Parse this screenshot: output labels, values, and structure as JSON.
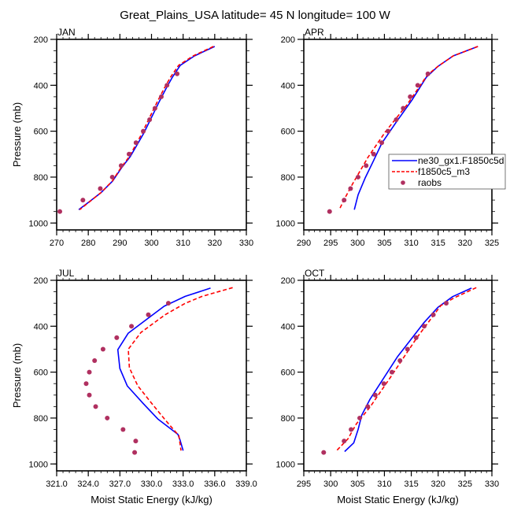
{
  "figure": {
    "title": "Great_Plains_USA  latitude= 45 N longitude= 100 W"
  },
  "chart_data": [
    {
      "type": "line",
      "panel": "JAN",
      "title": "JAN",
      "xlabel": "",
      "ylabel": "Pressure (mb)",
      "xlim": [
        270,
        330
      ],
      "ylim": [
        1030,
        200
      ],
      "y_reversed": true,
      "xticks": [
        270,
        280,
        290,
        300,
        310,
        320,
        330
      ],
      "xtick_labels": [
        "270",
        "280",
        "290",
        "300",
        "310",
        "320",
        "330"
      ],
      "x_minor_step": 2,
      "yticks": [
        200,
        400,
        600,
        800,
        1000
      ],
      "ytick_labels": [
        "200",
        "400",
        "600",
        "800",
        "1000"
      ],
      "y_minor_step": 50,
      "series": [
        {
          "name": "ne30_gx1.F1850c5d",
          "style": "solid",
          "color": "#0000ff",
          "x": [
            320.0,
            313.6,
            309.1,
            306.6,
            304.9,
            302.5,
            300.0,
            297.5,
            295.0,
            293.2,
            290.5,
            287.7,
            284.0,
            280.5,
            277.0
          ],
          "y": [
            231,
            272,
            313,
            365,
            406,
            470,
            540,
            610,
            670,
            712,
            760,
            817,
            868,
            905,
            942
          ]
        },
        {
          "name": "f1850c5_m3",
          "style": "dashed",
          "color": "#ff0000",
          "x": [
            319.6,
            313.2,
            308.6,
            306.0,
            304.3,
            301.9,
            299.4,
            297.0,
            294.6,
            292.9,
            290.3,
            287.6,
            284.0,
            280.6,
            277.3
          ],
          "y": [
            231,
            272,
            313,
            365,
            406,
            470,
            540,
            610,
            670,
            712,
            760,
            817,
            868,
            905,
            942
          ]
        },
        {
          "name": "raobs",
          "style": "marker",
          "color": "#b03060",
          "x": [
            308.1,
            304.9,
            303.1,
            301.1,
            299.4,
            297.4,
            295.1,
            292.9,
            290.4,
            287.6,
            283.8,
            278.3,
            271.0
          ],
          "y": [
            350,
            400,
            450,
            500,
            550,
            600,
            650,
            700,
            750,
            800,
            850,
            900,
            950
          ]
        }
      ]
    },
    {
      "type": "line",
      "panel": "APR",
      "title": "APR",
      "xlabel": "",
      "ylabel": "",
      "xlim": [
        290,
        325
      ],
      "ylim": [
        1030,
        200
      ],
      "y_reversed": true,
      "xticks": [
        290,
        295,
        300,
        305,
        310,
        315,
        320,
        325
      ],
      "xtick_labels": [
        "290",
        "295",
        "300",
        "305",
        "310",
        "315",
        "320",
        "325"
      ],
      "x_minor_step": 1,
      "yticks": [
        200,
        400,
        600,
        800,
        1000
      ],
      "ytick_labels": [
        "200",
        "400",
        "600",
        "800",
        "1000"
      ],
      "y_minor_step": 50,
      "legend": {
        "position": "right-center",
        "entries": [
          {
            "label": "ne30_gx1.F1850c5d",
            "style": "solid",
            "color": "#0000ff"
          },
          {
            "label": "f1850c5_m3",
            "style": "dashed",
            "color": "#ff0000"
          },
          {
            "label": "raobs",
            "style": "marker",
            "color": "#b03060"
          }
        ]
      },
      "series": [
        {
          "name": "ne30_gx1.F1850c5d",
          "style": "solid",
          "color": "#0000ff",
          "x": [
            322.4,
            317.8,
            315.0,
            312.8,
            310.1,
            307.2,
            304.5,
            303.0,
            301.4,
            300.1,
            299.4
          ],
          "y": [
            231,
            272,
            317,
            365,
            465,
            560,
            653,
            727,
            805,
            877,
            942
          ]
        },
        {
          "name": "f1850c5_m3",
          "style": "dashed",
          "color": "#ff0000",
          "x": [
            322.4,
            317.8,
            315.0,
            313.0,
            309.2,
            305.2,
            301.9,
            299.1,
            297.5,
            296.6
          ],
          "y": [
            231,
            272,
            317,
            355,
            485,
            602,
            715,
            829,
            898,
            942
          ]
        },
        {
          "name": "raobs",
          "style": "marker",
          "color": "#b03060",
          "x": [
            313.1,
            311.2,
            309.8,
            308.5,
            307.2,
            305.7,
            304.5,
            303.0,
            301.6,
            300.1,
            298.7,
            297.5,
            294.8
          ],
          "y": [
            350,
            400,
            450,
            500,
            550,
            600,
            650,
            700,
            750,
            800,
            850,
            900,
            950
          ]
        }
      ]
    },
    {
      "type": "line",
      "panel": "JUL",
      "title": "JUL",
      "xlabel": "Moist Static Energy (kJ/kg)",
      "ylabel": "Pressure (mb)",
      "xlim": [
        321,
        339
      ],
      "ylim": [
        1030,
        200
      ],
      "y_reversed": true,
      "xticks": [
        321,
        324,
        327,
        330,
        333,
        336,
        339
      ],
      "xtick_labels": [
        "321.0",
        "324.0",
        "327.0",
        "330.0",
        "333.0",
        "336.0",
        "339.0"
      ],
      "x_minor_step": 0.6,
      "yticks": [
        200,
        400,
        600,
        800,
        1000
      ],
      "ytick_labels": [
        "200",
        "400",
        "600",
        "800",
        "1000"
      ],
      "y_minor_step": 50,
      "series": [
        {
          "name": "ne30_gx1.F1850c5d",
          "style": "solid",
          "color": "#0000ff",
          "x": [
            335.6,
            333.2,
            331.2,
            327.8,
            326.8,
            327.0,
            327.7,
            329.2,
            330.6,
            332.5,
            332.7,
            333.0
          ],
          "y": [
            234,
            270,
            313,
            430,
            502,
            584,
            660,
            736,
            804,
            871,
            894,
            942
          ]
        },
        {
          "name": "f1850c5_m3",
          "style": "dashed",
          "color": "#ff0000",
          "x": [
            337.7,
            334.8,
            333.2,
            331.3,
            329.0,
            327.8,
            327.9,
            328.7,
            330.0,
            331.3,
            332.6,
            332.8
          ],
          "y": [
            232,
            270,
            300,
            350,
            427,
            500,
            581,
            660,
            735,
            808,
            877,
            942
          ]
        },
        {
          "name": "raobs",
          "style": "marker",
          "color": "#b03060",
          "x": [
            331.6,
            329.7,
            328.1,
            326.7,
            325.4,
            324.6,
            324.1,
            323.8,
            324.1,
            324.7,
            325.8,
            327.3,
            328.5,
            328.4
          ],
          "y": [
            300,
            350,
            400,
            450,
            500,
            550,
            600,
            650,
            700,
            750,
            800,
            850,
            900,
            950
          ]
        }
      ]
    },
    {
      "type": "line",
      "panel": "OCT",
      "title": "OCT",
      "xlabel": "Moist Static Energy (kJ/kg)",
      "ylabel": "",
      "xlim": [
        295,
        330
      ],
      "ylim": [
        1030,
        200
      ],
      "y_reversed": true,
      "xticks": [
        295,
        300,
        305,
        310,
        315,
        320,
        325,
        330
      ],
      "xtick_labels": [
        "295",
        "300",
        "305",
        "310",
        "315",
        "320",
        "325",
        "330"
      ],
      "x_minor_step": 1,
      "yticks": [
        200,
        400,
        600,
        800,
        1000
      ],
      "ytick_labels": [
        "200",
        "400",
        "600",
        "800",
        "1000"
      ],
      "y_minor_step": 50,
      "series": [
        {
          "name": "ne30_gx1.F1850c5d",
          "style": "solid",
          "color": "#0000ff",
          "x": [
            326.2,
            322.7,
            320.0,
            317.3,
            312.4,
            307.3,
            305.8,
            305.1,
            304.3,
            302.6
          ],
          "y": [
            234,
            271,
            317,
            386,
            534,
            719,
            787,
            850,
            908,
            946
          ]
        },
        {
          "name": "f1850c5_m3",
          "style": "dashed",
          "color": "#ff0000",
          "x": [
            327.1,
            323.0,
            320.5,
            316.1,
            311.2,
            307.3,
            304.8,
            303.2,
            301.1
          ],
          "y": [
            232,
            276,
            310,
            448,
            620,
            753,
            825,
            891,
            942
          ]
        },
        {
          "name": "raobs",
          "style": "marker",
          "color": "#b03060",
          "x": [
            321.5,
            319.1,
            317.4,
            315.9,
            314.3,
            312.9,
            311.4,
            309.9,
            308.3,
            306.9,
            305.4,
            303.8,
            302.5,
            298.7
          ],
          "y": [
            300,
            350,
            400,
            450,
            500,
            550,
            600,
            650,
            700,
            750,
            800,
            850,
            900,
            950
          ]
        }
      ]
    }
  ]
}
